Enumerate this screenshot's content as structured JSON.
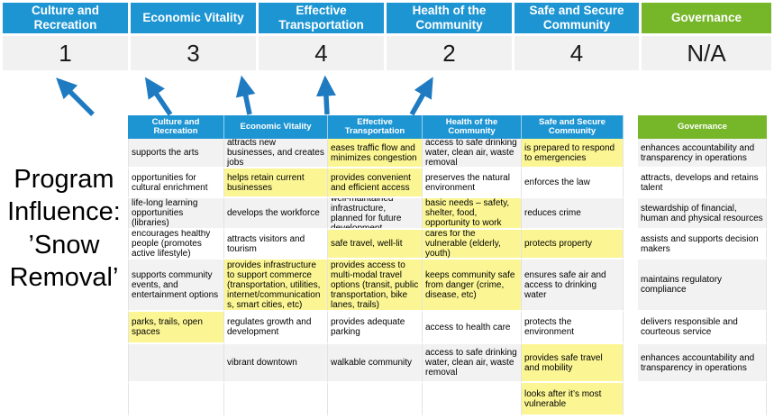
{
  "program_label": "Program Influence: ’Snow Removal’",
  "colors": {
    "category_blue": "#1E95D3",
    "governance_green": "#76B72A",
    "highlight_yellow": "#FBF693",
    "band_grey": "#F2F2F2",
    "score_grey": "#F1F1F2",
    "arrow_blue": "#1F7BC1"
  },
  "summary": {
    "columns": [
      {
        "label": "Culture and Recreation",
        "score": "1",
        "theme": "blue"
      },
      {
        "label": "Economic Vitality",
        "score": "3",
        "theme": "blue"
      },
      {
        "label": "Effective Transportation",
        "score": "4",
        "theme": "blue"
      },
      {
        "label": "Health of the Community",
        "score": "2",
        "theme": "blue"
      },
      {
        "label": "Safe and Secure Community",
        "score": "4",
        "theme": "blue"
      },
      {
        "label": "Governance",
        "score": "N/A",
        "theme": "green"
      }
    ]
  },
  "matrix": {
    "headers": [
      {
        "label": "Culture and Recreation",
        "theme": "blue"
      },
      {
        "label": "Economic Vitality",
        "theme": "blue"
      },
      {
        "label": "Effective Transportation",
        "theme": "blue"
      },
      {
        "label": "Health of the Community",
        "theme": "blue"
      },
      {
        "label": "Safe and Secure Community",
        "theme": "blue"
      },
      {
        "label": "Governance",
        "theme": "green"
      }
    ],
    "rows": [
      [
        {
          "t": "supports the arts"
        },
        {
          "t": "attracts new businesses, and creates jobs"
        },
        {
          "t": "eases traffic flow and minimizes congestion",
          "hl": true
        },
        {
          "t": "access to safe drinking water, clean air, waste removal"
        },
        {
          "t": "is prepared to respond to emergencies",
          "hl": true
        },
        {
          "t": "enhances accountability and transparency in operations"
        }
      ],
      [
        {
          "t": "opportunities for cultural enrichment"
        },
        {
          "t": "helps retain current businesses",
          "hl": true
        },
        {
          "t": "provides convenient and efficient access",
          "hl": true
        },
        {
          "t": "preserves the natural environment"
        },
        {
          "t": "enforces the law"
        },
        {
          "t": "attracts, develops and retains talent"
        }
      ],
      [
        {
          "t": "life-long learning opportunities (libraries)"
        },
        {
          "t": "develops the workforce"
        },
        {
          "t": "well-maintained infrastructure, planned for future development"
        },
        {
          "t": "basic needs – safety, shelter, food, opportunity to work",
          "hl": true
        },
        {
          "t": "reduces crime"
        },
        {
          "t": "stewardship of financial, human and physical resources"
        }
      ],
      [
        {
          "t": "encourages healthy people (promotes active lifestyle)"
        },
        {
          "t": "attracts visitors and tourism"
        },
        {
          "t": "safe travel, well-lit",
          "hl": true
        },
        {
          "t": "cares for the vulnerable (elderly, youth)",
          "hl": true
        },
        {
          "t": "protects property",
          "hl": true
        },
        {
          "t": "assists and supports decision makers"
        }
      ],
      [
        {
          "t": "supports community events, and entertainment options"
        },
        {
          "t": "provides infrastructure to support commerce (transportation, utilities, internet/communications, smart cities, etc)",
          "hl": true
        },
        {
          "t": "provides access to multi-modal travel options (transit, public transportation, bike lanes, trails)",
          "hl": true
        },
        {
          "t": "keeps community safe from danger (crime, disease, etc)",
          "hl": true
        },
        {
          "t": "ensures safe air and access to drinking water"
        },
        {
          "t": "maintains regulatory compliance"
        }
      ],
      [
        {
          "t": "parks, trails, open spaces",
          "hl": true
        },
        {
          "t": "regulates growth and development"
        },
        {
          "t": "provides adequate parking"
        },
        {
          "t": "access to health care"
        },
        {
          "t": "protects the environment"
        },
        {
          "t": "delivers responsible and courteous service"
        }
      ],
      [
        {
          "t": ""
        },
        {
          "t": "vibrant downtown"
        },
        {
          "t": "walkable community"
        },
        {
          "t": "access to safe drinking water, clean air, waste removal"
        },
        {
          "t": "provides safe travel and mobility",
          "hl": true
        },
        {
          "t": "enhances accountability and transparency in operations"
        }
      ],
      [
        {
          "t": ""
        },
        {
          "t": ""
        },
        {
          "t": ""
        },
        {
          "t": ""
        },
        {
          "t": "looks after it’s most vulnerable",
          "hl": true
        },
        {
          "t": ""
        }
      ]
    ]
  }
}
